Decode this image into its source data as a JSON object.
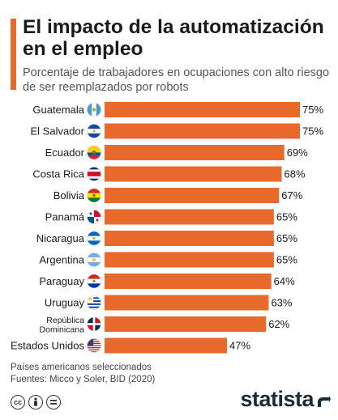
{
  "header": {
    "title": "El impacto de la automatización en el empleo",
    "subtitle": "Porcentaje de trabajadores en ocupaciones con alto riesgo de ser reemplazados por robots"
  },
  "chart_data": {
    "type": "bar",
    "orientation": "horizontal",
    "title": "El impacto de la automatización en el empleo",
    "subtitle": "Porcentaje de trabajadores en ocupaciones con alto riesgo de ser reemplazados por robots",
    "categories": [
      "Guatemala",
      "El Salvador",
      "Ecuador",
      "Costa Rica",
      "Bolivia",
      "Panamá",
      "Nicaragua",
      "Argentina",
      "Paraguay",
      "Uruguay",
      "República Dominicana",
      "Estados Unidos"
    ],
    "values": [
      75,
      75,
      69,
      68,
      67,
      65,
      65,
      65,
      64,
      63,
      62,
      47
    ],
    "value_labels": [
      "75%",
      "75%",
      "69%",
      "68%",
      "67%",
      "65%",
      "65%",
      "65%",
      "64%",
      "63%",
      "62%",
      "47%"
    ],
    "label_lines": {
      "10": [
        "República",
        "Dominicana"
      ]
    },
    "flags": [
      "guatemala-flag",
      "el-salvador-flag",
      "ecuador-flag",
      "costa-rica-flag",
      "bolivia-flag",
      "panama-flag",
      "nicaragua-flag",
      "argentina-flag",
      "paraguay-flag",
      "uruguay-flag",
      "dominican-republic-flag",
      "united-states-flag"
    ],
    "xlim": [
      0,
      75
    ],
    "unit": "%",
    "bar_color": "#e8692c",
    "grid": false,
    "legend": "none"
  },
  "footer": {
    "note": "Países americanos seleccionados",
    "source": "Fuentes: Micco y Soler, BID (2020)",
    "license_icons": [
      "creative-commons-icon",
      "attribution-icon",
      "no-derivatives-icon"
    ],
    "brand": "statista"
  },
  "colors": {
    "accent": "#e8692c",
    "brand": "#1b2b3c"
  }
}
